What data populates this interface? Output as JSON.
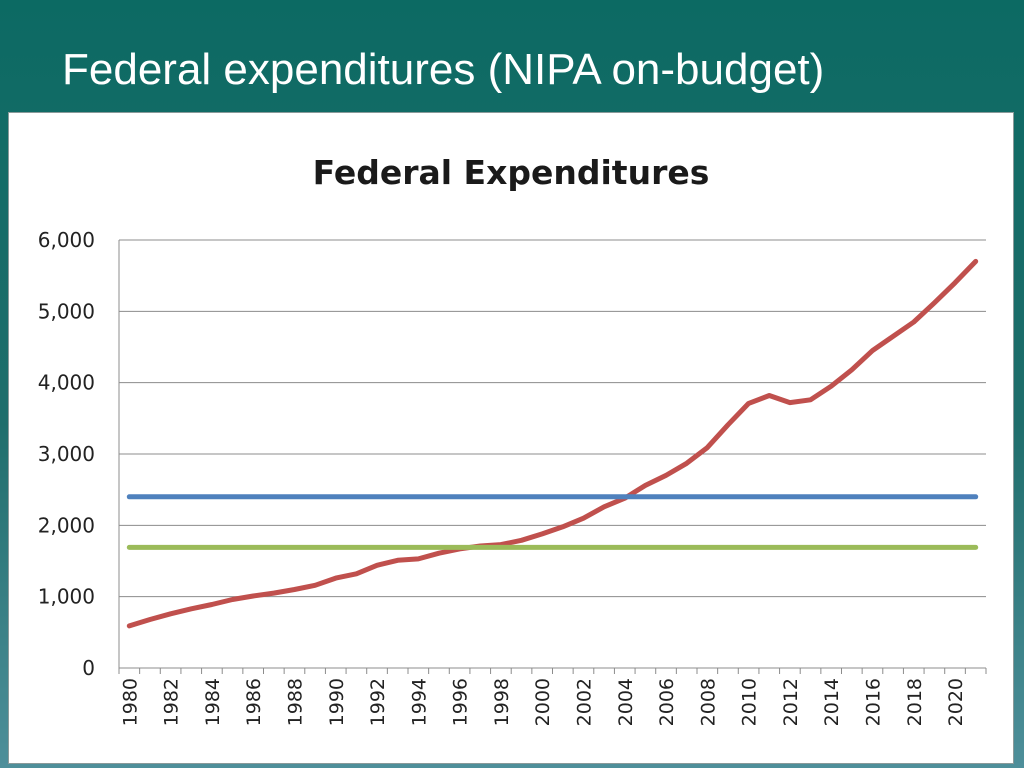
{
  "slide": {
    "title": "Federal expenditures (NIPA on-budget)"
  },
  "chart_data": {
    "type": "line",
    "title": "Federal Expenditures",
    "xlabel": "",
    "ylabel": "",
    "ylim": [
      0,
      6000
    ],
    "yticks": [
      0,
      1000,
      2000,
      3000,
      4000,
      5000,
      6000
    ],
    "ytick_labels": [
      "0",
      "1,000",
      "2,000",
      "3,000",
      "4,000",
      "5,000",
      "6,000"
    ],
    "xticks": [
      "1980",
      "1982",
      "1984",
      "1986",
      "1988",
      "1990",
      "1992",
      "1994",
      "1996",
      "1998",
      "2000",
      "2002",
      "2004",
      "2006",
      "2008",
      "2010",
      "2012",
      "2014",
      "2016",
      "2018",
      "2020"
    ],
    "grid": true,
    "legend": "none",
    "x": [
      1980,
      1981,
      1982,
      1983,
      1984,
      1985,
      1986,
      1987,
      1988,
      1989,
      1990,
      1991,
      1992,
      1993,
      1994,
      1995,
      1996,
      1997,
      1998,
      1999,
      2000,
      2001,
      2002,
      2003,
      2004,
      2005,
      2006,
      2007,
      2008,
      2009,
      2010,
      2011,
      2012,
      2013,
      2014,
      2015,
      2016,
      2017,
      2018,
      2019,
      2020,
      2021
    ],
    "series": [
      {
        "color": "#c0504d",
        "values": [
          590,
          680,
          760,
          830,
          890,
          960,
          1010,
          1050,
          1100,
          1160,
          1260,
          1320,
          1440,
          1510,
          1530,
          1610,
          1670,
          1710,
          1730,
          1790,
          1880,
          1980,
          2100,
          2260,
          2380,
          2560,
          2700,
          2870,
          3090,
          3410,
          3710,
          3820,
          3720,
          3760,
          3950,
          4180,
          4450,
          4650,
          4850,
          5120,
          5400,
          5700
        ]
      },
      {
        "color": "#4f81bd",
        "values": [
          2400,
          2400,
          2400,
          2400,
          2400,
          2400,
          2400,
          2400,
          2400,
          2400,
          2400,
          2400,
          2400,
          2400,
          2400,
          2400,
          2400,
          2400,
          2400,
          2400,
          2400,
          2400,
          2400,
          2400,
          2400,
          2400,
          2400,
          2400,
          2400,
          2400,
          2400,
          2400,
          2400,
          2400,
          2400,
          2400,
          2400,
          2400,
          2400,
          2400,
          2400,
          2400
        ]
      },
      {
        "color": "#9bbb59",
        "values": [
          1690,
          1690,
          1690,
          1690,
          1690,
          1690,
          1690,
          1690,
          1690,
          1690,
          1690,
          1690,
          1690,
          1690,
          1690,
          1690,
          1690,
          1690,
          1690,
          1690,
          1690,
          1690,
          1690,
          1690,
          1690,
          1690,
          1690,
          1690,
          1690,
          1690,
          1690,
          1690,
          1690,
          1690,
          1690,
          1690,
          1690,
          1690,
          1690,
          1690,
          1690,
          1690
        ]
      }
    ]
  }
}
